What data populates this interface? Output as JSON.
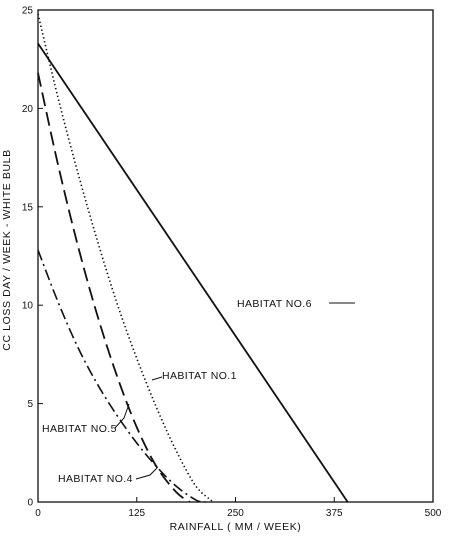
{
  "chart_data": {
    "type": "line",
    "title": "",
    "xlabel": "RAINFALL ( MM / WEEK)",
    "ylabel": "CC LOSS DAY / WEEK - WHITE BULB",
    "xlim": [
      0,
      500
    ],
    "ylim": [
      0,
      25
    ],
    "x_ticks": [
      0,
      125,
      250,
      375,
      500
    ],
    "y_ticks": [
      0,
      5,
      10,
      15,
      20,
      25
    ],
    "x_tick_labels": [
      "0",
      "125",
      "250",
      "375",
      "500"
    ],
    "y_tick_labels": [
      "0",
      "5",
      "10",
      "15",
      "20",
      "25"
    ],
    "grid": false,
    "legend": "none",
    "series": [
      {
        "name": "HABITAT NO.6",
        "style": "solid",
        "x": [
          0,
          392
        ],
        "y": [
          23.3,
          0
        ]
      },
      {
        "name": "HABITAT NO.1",
        "style": "dotted",
        "x": [
          0,
          25,
          50,
          75,
          100,
          125,
          150,
          175,
          200,
          222
        ],
        "y": [
          24.8,
          20.6,
          16.8,
          13.3,
          10.1,
          7.3,
          4.8,
          2.6,
          0.8,
          0
        ]
      },
      {
        "name": "HABITAT NO.5",
        "style": "dashed",
        "x": [
          0,
          25,
          50,
          75,
          100,
          125,
          150,
          175,
          192
        ],
        "y": [
          21.8,
          17.2,
          13.1,
          9.5,
          6.4,
          3.8,
          1.8,
          0.5,
          0
        ]
      },
      {
        "name": "HABITAT NO.4",
        "style": "dash-dot",
        "x": [
          0,
          25,
          50,
          75,
          100,
          125,
          150,
          175,
          200,
          212
        ],
        "y": [
          12.8,
          10.2,
          7.9,
          6.0,
          4.4,
          3.0,
          1.8,
          0.8,
          0.1,
          0
        ]
      }
    ]
  },
  "colors": {
    "ink": "#111111",
    "background": "#ffffff"
  }
}
